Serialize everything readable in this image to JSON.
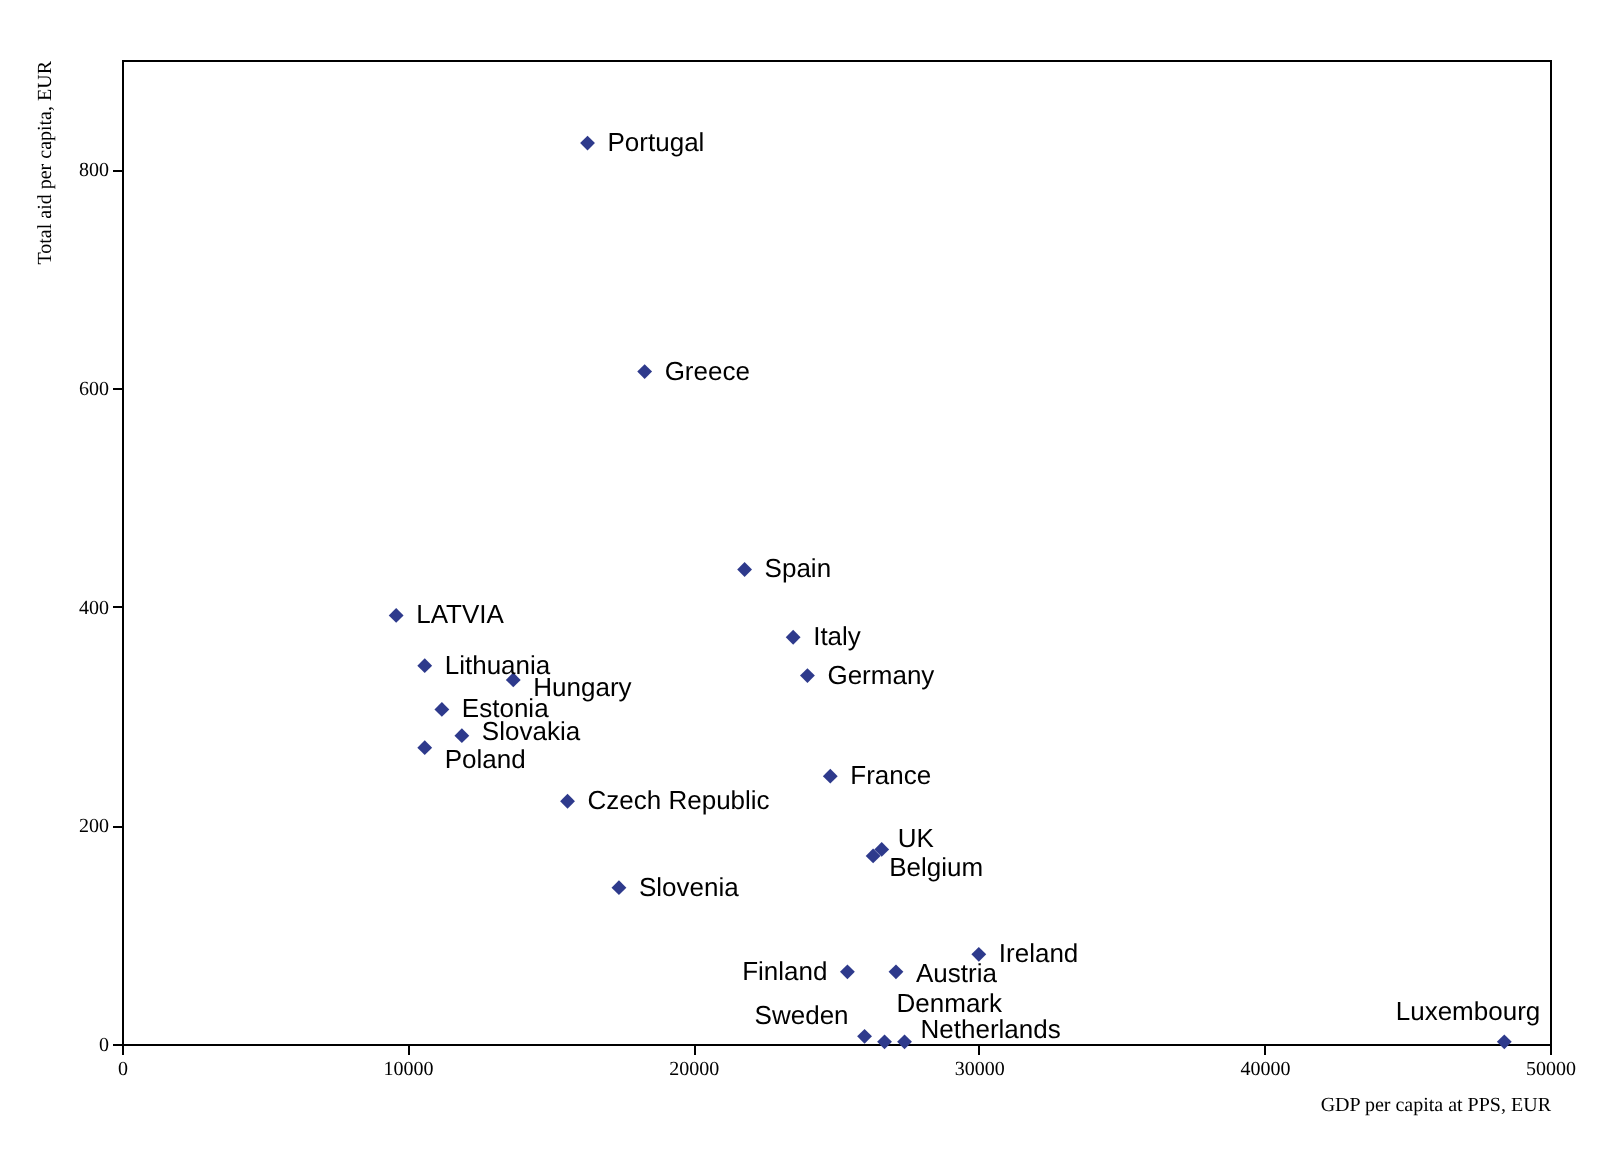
{
  "chart_data": {
    "type": "scatter",
    "xlabel": "GDP per capita at PPS, EUR",
    "ylabel": "Total aid per capita,  EUR",
    "xlim": [
      0,
      50000
    ],
    "xticks": [
      0,
      10000,
      20000,
      30000,
      40000,
      50000
    ],
    "ylim": [
      0,
      900
    ],
    "yticks": [
      0,
      200,
      400,
      600,
      800
    ],
    "grid": false,
    "marker": "diamond",
    "series": [
      {
        "color": "#2e3a8c",
        "x": [
          16300,
          18300,
          21800,
          9600,
          23500,
          10600,
          13700,
          24000,
          11200,
          11900,
          10600,
          24800,
          15600,
          26600,
          26300,
          17400,
          30000,
          25400,
          27100,
          26000,
          26700,
          27400,
          48400
        ],
        "values": [
          824,
          615,
          434,
          392,
          372,
          346,
          333,
          337,
          306,
          282,
          271,
          245,
          222,
          178,
          172,
          143,
          82,
          66,
          66,
          7,
          2,
          2,
          2
        ]
      }
    ],
    "annotations": [
      {
        "text": "Portugal",
        "x": 16300,
        "y": 824
      },
      {
        "text": "Greece",
        "x": 18300,
        "y": 615
      },
      {
        "text": "Spain",
        "x": 21800,
        "y": 434
      },
      {
        "text": "LATVIA",
        "x": 9600,
        "y": 392
      },
      {
        "text": "Italy",
        "x": 23500,
        "y": 372
      },
      {
        "text": "Lithuania",
        "x": 10600,
        "y": 346
      },
      {
        "text": "Hungary",
        "x": 13700,
        "y": 333
      },
      {
        "text": "Germany",
        "x": 24000,
        "y": 337
      },
      {
        "text": "Estonia",
        "x": 11200,
        "y": 306
      },
      {
        "text": "Slovakia",
        "x": 11900,
        "y": 282
      },
      {
        "text": "Poland",
        "x": 10600,
        "y": 271
      },
      {
        "text": "France",
        "x": 24800,
        "y": 245
      },
      {
        "text": "Czech Republic",
        "x": 15600,
        "y": 222
      },
      {
        "text": "UK",
        "x": 26600,
        "y": 178
      },
      {
        "text": "Belgium",
        "x": 26300,
        "y": 172
      },
      {
        "text": "Slovenia",
        "x": 17400,
        "y": 143
      },
      {
        "text": "Ireland",
        "x": 30000,
        "y": 82
      },
      {
        "text": "Finland",
        "x": 25400,
        "y": 66
      },
      {
        "text": "Austria",
        "x": 27100,
        "y": 66
      },
      {
        "text": "Sweden",
        "x": 26000,
        "y": 7
      },
      {
        "text": "Denmark",
        "x": 26700,
        "y": 2
      },
      {
        "text": "Netherlands",
        "x": 27400,
        "y": 2
      },
      {
        "text": "Luxembourg",
        "x": 48400,
        "y": 2
      }
    ]
  }
}
